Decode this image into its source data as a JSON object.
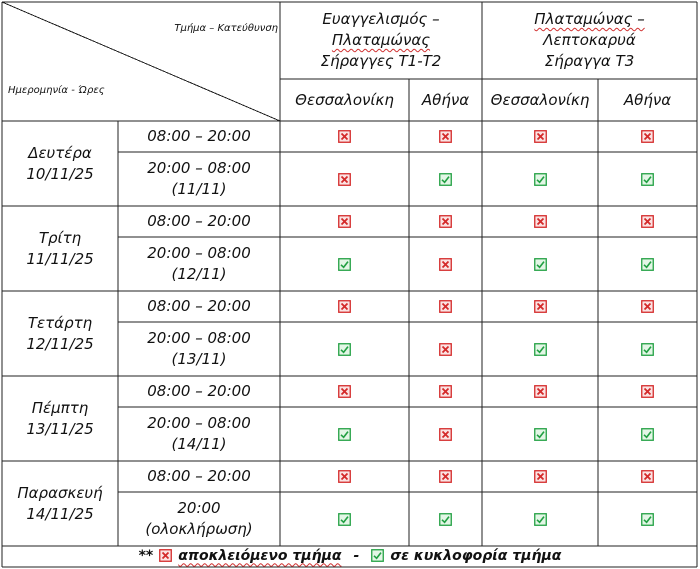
{
  "header": {
    "corner_top": "Τμήμα – Κατεύθυνση",
    "corner_bottom": "Ημερομηνία - Ώρες",
    "sections": [
      {
        "lines": [
          "Ευαγγελισμός –",
          "Πλαταμώνας",
          "Σήραγγες Τ1-Τ2"
        ]
      },
      {
        "lines": [
          "Πλαταμώνας –",
          "Λεπτοκαρυά",
          "Σήραγγα Τ3"
        ]
      }
    ],
    "directions": [
      "Θεσσαλονίκη",
      "Αθήνα",
      "Θεσσαλονίκη",
      "Αθήνα"
    ]
  },
  "days": [
    {
      "name": "Δευτέρα",
      "date": "10/11/25",
      "slots": [
        {
          "lines": [
            "08:00 – 20:00"
          ],
          "status": [
            "closed",
            "closed",
            "closed",
            "closed"
          ]
        },
        {
          "lines": [
            "20:00 – 08:00",
            "(11/11)"
          ],
          "status": [
            "closed",
            "open",
            "open",
            "open"
          ]
        }
      ]
    },
    {
      "name": "Τρίτη",
      "date": "11/11/25",
      "slots": [
        {
          "lines": [
            "08:00 – 20:00"
          ],
          "status": [
            "closed",
            "closed",
            "closed",
            "closed"
          ]
        },
        {
          "lines": [
            "20:00 – 08:00",
            "(12/11)"
          ],
          "status": [
            "open",
            "closed",
            "open",
            "open"
          ]
        }
      ]
    },
    {
      "name": "Τετάρτη",
      "date": "12/11/25",
      "slots": [
        {
          "lines": [
            "08:00 – 20:00"
          ],
          "status": [
            "closed",
            "closed",
            "closed",
            "closed"
          ]
        },
        {
          "lines": [
            "20:00 – 08:00",
            "(13/11)"
          ],
          "status": [
            "open",
            "closed",
            "open",
            "open"
          ]
        }
      ]
    },
    {
      "name": "Πέμπτη",
      "date": "13/11/25",
      "slots": [
        {
          "lines": [
            "08:00 – 20:00"
          ],
          "status": [
            "closed",
            "closed",
            "closed",
            "closed"
          ]
        },
        {
          "lines": [
            "20:00 – 08:00",
            "(14/11)"
          ],
          "status": [
            "open",
            "closed",
            "open",
            "open"
          ]
        }
      ]
    },
    {
      "name": "Παρασκευή",
      "date": "14/11/25",
      "slots": [
        {
          "lines": [
            "08:00 – 20:00"
          ],
          "status": [
            "closed",
            "closed",
            "closed",
            "closed"
          ]
        },
        {
          "lines": [
            "20:00",
            "(ολοκλήρωση)"
          ],
          "status": [
            "open",
            "open",
            "open",
            "open"
          ]
        }
      ]
    }
  ],
  "legend": {
    "prefix": "**",
    "closed_label": "αποκλειόμενο τμήμα",
    "separator": "-",
    "open_label": "σε κυκλοφορία τμήμα"
  },
  "colors": {
    "closed": "#d42a2a",
    "closed_fill": "#fbe3e3",
    "open": "#22a043",
    "open_fill": "#e3f6e6",
    "border": "#222222"
  },
  "icons": {
    "closed": "x-box-icon",
    "open": "check-box-icon"
  }
}
